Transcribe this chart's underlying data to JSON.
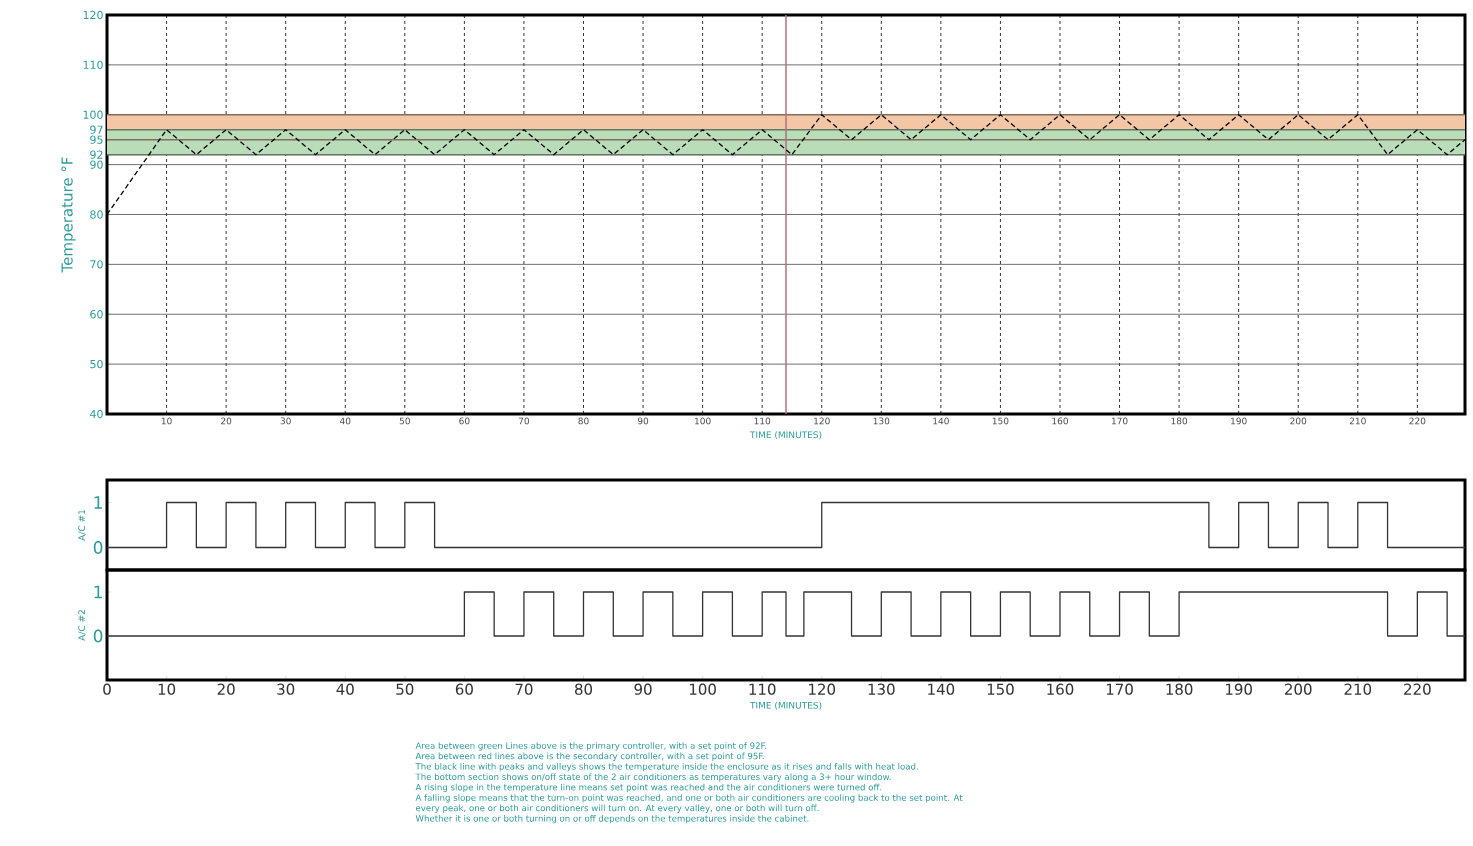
{
  "chart_data": [
    {
      "type": "line",
      "ylabel": "Temperature °F",
      "xlabel": "TIME (MINUTES)",
      "color": "#000000",
      "line_style": "dashed",
      "x": [
        0,
        10,
        15,
        20,
        25,
        30,
        35,
        40,
        45,
        50,
        55,
        60,
        65,
        70,
        75,
        80,
        85,
        90,
        95,
        100,
        105,
        110,
        115,
        120,
        125,
        130,
        135,
        140,
        145,
        150,
        155,
        160,
        165,
        170,
        175,
        180,
        185,
        190,
        195,
        200,
        205,
        210,
        215,
        220,
        225,
        228
      ],
      "values": [
        80,
        97,
        92,
        97,
        92,
        97,
        92,
        97,
        92,
        97,
        92,
        97,
        92,
        97,
        92,
        97,
        92,
        97,
        92,
        97,
        92,
        97,
        92,
        100,
        95,
        100,
        95,
        100,
        95,
        100,
        95,
        100,
        95,
        100,
        95,
        100,
        95,
        100,
        95,
        100,
        95,
        100,
        92,
        97,
        92,
        95
      ],
      "xlim": [
        0,
        228
      ],
      "ylim": [
        40,
        120
      ],
      "xticks": [
        10,
        20,
        30,
        40,
        50,
        60,
        70,
        80,
        90,
        100,
        110,
        120,
        130,
        140,
        150,
        160,
        170,
        180,
        190,
        200,
        210,
        220
      ],
      "yticks": [
        40,
        50,
        60,
        70,
        80,
        90,
        92,
        95,
        97,
        100,
        110,
        120
      ],
      "grid": true,
      "bands": [
        {
          "axis": "y",
          "from": 95,
          "to": 100,
          "color": "#f3c6a5"
        },
        {
          "axis": "y",
          "from": 92,
          "to": 97,
          "color": "#b9dcb9"
        }
      ],
      "ref_lines": [
        {
          "axis": "x",
          "value": 114,
          "color": "#b07080"
        }
      ]
    },
    {
      "type": "step",
      "ylabel": "A/C #1",
      "color": "#333333",
      "x": [
        0,
        10,
        15,
        20,
        25,
        30,
        35,
        40,
        45,
        50,
        55,
        120,
        185,
        190,
        195,
        200,
        205,
        210,
        215,
        228
      ],
      "values": [
        0,
        1,
        0,
        1,
        0,
        1,
        0,
        1,
        0,
        1,
        0,
        1,
        0,
        1,
        0,
        1,
        0,
        1,
        0,
        0
      ],
      "xlim": [
        0,
        228
      ],
      "ylim": [
        -0.5,
        1.5
      ],
      "yticks": [
        0,
        1
      ],
      "tick_labels": "y"
    },
    {
      "type": "step",
      "ylabel": "A/C #2",
      "xlabel": "TIME (MINUTES)",
      "color": "#333333",
      "x": [
        0,
        60,
        65,
        70,
        75,
        80,
        85,
        90,
        95,
        100,
        105,
        110,
        114,
        117,
        125,
        130,
        135,
        140,
        145,
        150,
        155,
        160,
        165,
        170,
        175,
        180,
        215,
        220,
        225,
        228
      ],
      "values": [
        0,
        1,
        0,
        1,
        0,
        1,
        0,
        1,
        0,
        1,
        0,
        1,
        0,
        1,
        0,
        1,
        0,
        1,
        0,
        1,
        0,
        1,
        0,
        1,
        0,
        1,
        0,
        1,
        0,
        0
      ],
      "xlim": [
        0,
        228
      ],
      "ylim": [
        -1,
        1.5
      ],
      "xticks": [
        0,
        10,
        20,
        30,
        40,
        50,
        60,
        70,
        80,
        90,
        100,
        110,
        120,
        130,
        140,
        150,
        160,
        170,
        180,
        190,
        200,
        210,
        220
      ],
      "yticks": [
        0,
        1
      ],
      "annotations": [
        "Area between green Lines above is the primary controller, with a set point of 92F.",
        "Area between red lines above is the secondary controller, with a set point of 95F.",
        "The black line with peaks and valleys shows the temperature inside the enclosure as it rises and falls with heat load.",
        "The bottom section shows on/off state of the 2 air conditioners as temperatures vary along a 3+ hour window.",
        "A rising slope in the temperature line means set point was reached and the air conditioners were turned off.",
        "A falling slope means that the turn-on point was reached, and one or both air conditioners are cooling back to the set point. At",
        "every peak, one or both air conditioners will turn on.  At every valley, one or both will turn off.",
        "Whether it is one or both turning on or off depends on the temperatures inside the cabinet."
      ]
    }
  ]
}
